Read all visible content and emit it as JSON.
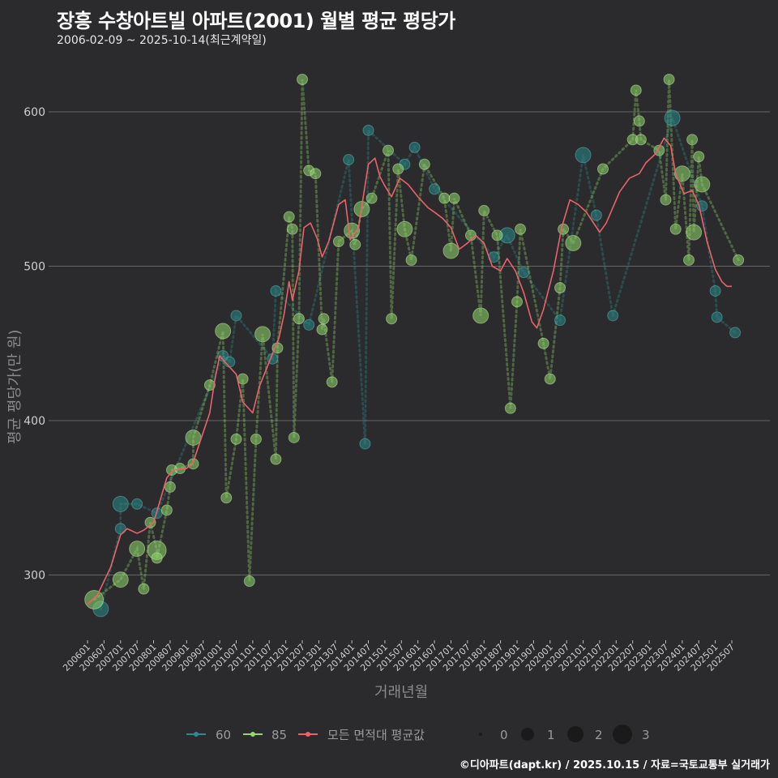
{
  "title": "장흥 수창아트빌 아파트(2001) 월별 평균 평당가",
  "subtitle": "2006-02-09 ~ 2025-10-14(최근계약일)",
  "caption": "©디아파트(dapt.kr) / 2025.10.15 / 자료=국토교통부 실거래가",
  "colors": {
    "s60": "#2a8a8c",
    "s85": "#92d86e",
    "avg": "#e8636a",
    "grid": "#666666",
    "bg": "#2b2a2c"
  },
  "chart_data": {
    "type": "scatter",
    "title": "장흥 수창아트빌 아파트(2001) 월별 평균 평당가",
    "xlabel": "거래년월",
    "ylabel": "평균 평당가(만 원)",
    "ylim": [
      255,
      640
    ],
    "xlim": [
      2005.75,
      2026.0
    ],
    "y_ticks": [
      300,
      400,
      500,
      600
    ],
    "x_ticks": [
      "200601",
      "200607",
      "200701",
      "200707",
      "200801",
      "200807",
      "200901",
      "200907",
      "201001",
      "201007",
      "201101",
      "201107",
      "201201",
      "201207",
      "201301",
      "201307",
      "201401",
      "201407",
      "201501",
      "201507",
      "201601",
      "201607",
      "201701",
      "201707",
      "201801",
      "201807",
      "201901",
      "201907",
      "202001",
      "202007",
      "202101",
      "202107",
      "202201",
      "202207",
      "202301",
      "202307",
      "202401",
      "202407",
      "202501",
      "202507"
    ],
    "grid": true,
    "legend": {
      "position": "bottom",
      "series_labels": [
        "60",
        "85",
        "모든 면적대 평균값"
      ],
      "size_labels": [
        "0",
        "1",
        "2",
        "3"
      ]
    },
    "series": [
      {
        "name": "60",
        "points": [
          [
            2006.4,
            278,
            2
          ],
          [
            2007.0,
            330,
            1
          ],
          [
            2007.0,
            346,
            2
          ],
          [
            2007.5,
            346,
            1
          ],
          [
            2008.1,
            340,
            1
          ],
          [
            2010.1,
            442,
            1
          ],
          [
            2010.3,
            438,
            1
          ],
          [
            2010.5,
            468,
            1
          ],
          [
            2011.6,
            440,
            1
          ],
          [
            2011.7,
            484,
            1
          ],
          [
            2012.7,
            462,
            1
          ],
          [
            2013.9,
            569,
            1
          ],
          [
            2014.4,
            385,
            1
          ],
          [
            2014.5,
            588,
            1
          ],
          [
            2015.6,
            566,
            1
          ],
          [
            2015.9,
            577,
            1
          ],
          [
            2016.5,
            550,
            1
          ],
          [
            2018.3,
            506,
            1
          ],
          [
            2018.7,
            520,
            2
          ],
          [
            2019.2,
            496,
            1
          ],
          [
            2020.3,
            465,
            1
          ],
          [
            2021.0,
            572,
            2
          ],
          [
            2021.4,
            533,
            1
          ],
          [
            2021.9,
            468,
            1
          ],
          [
            2023.7,
            596,
            2
          ],
          [
            2024.6,
            539,
            1
          ],
          [
            2025.0,
            484,
            1
          ],
          [
            2025.05,
            467,
            1
          ],
          [
            2025.6,
            457,
            1
          ]
        ]
      },
      {
        "name": "85",
        "points": [
          [
            2006.2,
            284,
            3
          ],
          [
            2007.0,
            297,
            2
          ],
          [
            2007.5,
            317,
            2
          ],
          [
            2007.7,
            291,
            1
          ],
          [
            2008.1,
            316,
            3
          ],
          [
            2008.1,
            311,
            1
          ],
          [
            2007.9,
            334,
            1
          ],
          [
            2008.4,
            342,
            1
          ],
          [
            2008.5,
            357,
            1
          ],
          [
            2008.55,
            368,
            1
          ],
          [
            2008.8,
            369,
            1
          ],
          [
            2009.2,
            372,
            1
          ],
          [
            2009.2,
            389,
            2
          ],
          [
            2009.7,
            423,
            1
          ],
          [
            2010.1,
            458,
            2
          ],
          [
            2010.2,
            350,
            1
          ],
          [
            2010.5,
            388,
            1
          ],
          [
            2010.7,
            427,
            1
          ],
          [
            2010.9,
            296,
            1
          ],
          [
            2011.1,
            388,
            1
          ],
          [
            2011.3,
            456,
            2
          ],
          [
            2011.7,
            375,
            1
          ],
          [
            2011.75,
            447,
            1
          ],
          [
            2012.1,
            532,
            1
          ],
          [
            2012.2,
            524,
            1
          ],
          [
            2012.25,
            389,
            1
          ],
          [
            2012.4,
            466,
            1
          ],
          [
            2012.5,
            621,
            1
          ],
          [
            2012.7,
            562,
            1
          ],
          [
            2012.9,
            560,
            1
          ],
          [
            2013.1,
            459,
            1
          ],
          [
            2013.15,
            466,
            1
          ],
          [
            2013.4,
            425,
            1
          ],
          [
            2013.6,
            516,
            1
          ],
          [
            2014.0,
            523,
            2
          ],
          [
            2014.1,
            514,
            1
          ],
          [
            2014.3,
            537,
            2
          ],
          [
            2014.6,
            544,
            1
          ],
          [
            2015.1,
            575,
            1
          ],
          [
            2015.2,
            466,
            1
          ],
          [
            2015.4,
            563,
            1
          ],
          [
            2015.6,
            524,
            2
          ],
          [
            2015.8,
            504,
            1
          ],
          [
            2016.2,
            566,
            1
          ],
          [
            2016.8,
            544,
            1
          ],
          [
            2017.1,
            544,
            1
          ],
          [
            2017.0,
            510,
            2
          ],
          [
            2017.6,
            520,
            1
          ],
          [
            2017.9,
            468,
            2
          ],
          [
            2018.0,
            536,
            1
          ],
          [
            2018.4,
            520,
            1
          ],
          [
            2018.8,
            408,
            1
          ],
          [
            2019.0,
            477,
            1
          ],
          [
            2019.1,
            524,
            1
          ],
          [
            2019.8,
            450,
            1
          ],
          [
            2020.0,
            427,
            1
          ],
          [
            2020.3,
            486,
            1
          ],
          [
            2020.4,
            524,
            1
          ],
          [
            2020.7,
            515,
            2
          ],
          [
            2021.6,
            563,
            1
          ],
          [
            2022.5,
            582,
            1
          ],
          [
            2022.6,
            614,
            1
          ],
          [
            2022.7,
            594,
            1
          ],
          [
            2022.75,
            582,
            1
          ],
          [
            2023.3,
            575,
            1
          ],
          [
            2023.5,
            543,
            1
          ],
          [
            2023.6,
            621,
            1
          ],
          [
            2023.8,
            524,
            1
          ],
          [
            2024.0,
            560,
            2
          ],
          [
            2024.2,
            504,
            1
          ],
          [
            2024.3,
            582,
            1
          ],
          [
            2024.35,
            522,
            2
          ],
          [
            2024.5,
            571,
            1
          ],
          [
            2024.6,
            553,
            2
          ],
          [
            2025.7,
            504,
            1
          ]
        ]
      },
      {
        "name": "모든 면적대 평균값",
        "points": [
          [
            2006.0,
            281
          ],
          [
            2006.3,
            287
          ],
          [
            2006.7,
            305
          ],
          [
            2007.0,
            326
          ],
          [
            2007.2,
            330
          ],
          [
            2007.5,
            327
          ],
          [
            2007.7,
            329
          ],
          [
            2008.0,
            334
          ],
          [
            2008.4,
            363
          ],
          [
            2008.6,
            368
          ],
          [
            2009.0,
            369
          ],
          [
            2009.2,
            373
          ],
          [
            2009.4,
            386
          ],
          [
            2009.7,
            405
          ],
          [
            2009.85,
            426
          ],
          [
            2010.0,
            442
          ],
          [
            2010.2,
            437
          ],
          [
            2010.5,
            430
          ],
          [
            2010.7,
            412
          ],
          [
            2011.0,
            405
          ],
          [
            2011.2,
            422
          ],
          [
            2011.5,
            438
          ],
          [
            2011.8,
            454
          ],
          [
            2011.95,
            469
          ],
          [
            2012.1,
            490
          ],
          [
            2012.2,
            478
          ],
          [
            2012.4,
            497
          ],
          [
            2012.55,
            525
          ],
          [
            2012.75,
            528
          ],
          [
            2012.95,
            518
          ],
          [
            2013.1,
            506
          ],
          [
            2013.3,
            516
          ],
          [
            2013.6,
            540
          ],
          [
            2013.8,
            543
          ],
          [
            2013.95,
            517
          ],
          [
            2014.2,
            525
          ],
          [
            2014.5,
            566
          ],
          [
            2014.7,
            570
          ],
          [
            2014.85,
            558
          ],
          [
            2015.0,
            552
          ],
          [
            2015.2,
            545
          ],
          [
            2015.45,
            557
          ],
          [
            2015.7,
            553
          ],
          [
            2016.0,
            545
          ],
          [
            2016.3,
            538
          ],
          [
            2016.5,
            535
          ],
          [
            2016.75,
            531
          ],
          [
            2017.0,
            525
          ],
          [
            2017.25,
            511
          ],
          [
            2017.5,
            515
          ],
          [
            2017.75,
            520
          ],
          [
            2018.0,
            515
          ],
          [
            2018.25,
            500
          ],
          [
            2018.5,
            497
          ],
          [
            2018.7,
            505
          ],
          [
            2018.95,
            497
          ],
          [
            2019.2,
            483
          ],
          [
            2019.45,
            464
          ],
          [
            2019.6,
            460
          ],
          [
            2019.8,
            472
          ],
          [
            2020.1,
            497
          ],
          [
            2020.35,
            525
          ],
          [
            2020.6,
            543
          ],
          [
            2020.85,
            540
          ],
          [
            2021.1,
            535
          ],
          [
            2021.5,
            522
          ],
          [
            2021.7,
            528
          ],
          [
            2022.1,
            548
          ],
          [
            2022.4,
            557
          ],
          [
            2022.7,
            560
          ],
          [
            2022.9,
            567
          ],
          [
            2023.2,
            573
          ],
          [
            2023.45,
            583
          ],
          [
            2023.65,
            578
          ],
          [
            2023.8,
            560
          ],
          [
            2024.05,
            547
          ],
          [
            2024.3,
            549
          ],
          [
            2024.5,
            540
          ],
          [
            2024.75,
            516
          ],
          [
            2025.0,
            498
          ],
          [
            2025.2,
            490
          ],
          [
            2025.35,
            487
          ],
          [
            2025.5,
            487
          ]
        ]
      }
    ]
  }
}
